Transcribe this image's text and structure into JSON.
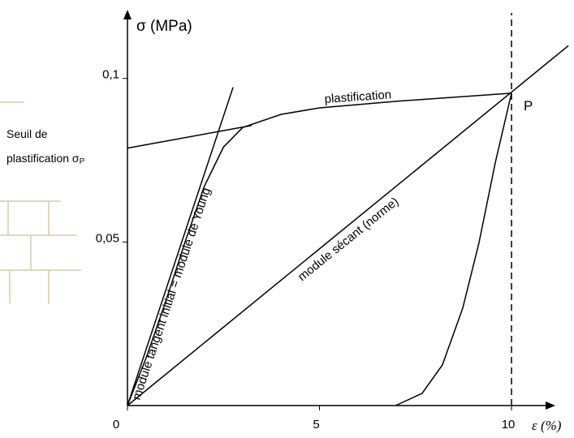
{
  "chart_data": {
    "type": "line",
    "y_label": "σ (MPa)",
    "x_label": "ε (%)",
    "xlim": [
      0,
      11.5
    ],
    "ylim": [
      0,
      0.12
    ],
    "xticks": [
      0,
      5,
      10
    ],
    "yticks": [
      {
        "value": 0.05,
        "label": "0,05"
      },
      {
        "value": 0.1,
        "label": "0,1"
      }
    ],
    "series": [
      {
        "color": "#000000",
        "x": [
          0,
          0.5,
          1,
          1.5,
          2,
          2.5,
          3,
          4,
          5,
          7,
          10
        ],
        "values": [
          0,
          0.015,
          0.032,
          0.05,
          0.067,
          0.079,
          0.085,
          0.089,
          0.091,
          0.093,
          0.0955
        ]
      },
      {
        "color": "#000000",
        "x": [
          10,
          9.58,
          9.15,
          8.73,
          8.2,
          7.67,
          6.98
        ],
        "values": [
          0.0955,
          0.0744,
          0.0496,
          0.0298,
          0.0124,
          0.0037,
          0
        ]
      },
      {
        "color": "#000000",
        "x": [
          0,
          2.75
        ],
        "values": [
          0,
          0.0973
        ]
      },
      {
        "color": "#000000",
        "x": [
          0,
          11.48
        ],
        "values": [
          0,
          0.11
        ]
      },
      {
        "color": "#000000",
        "x": [
          0,
          3.23
        ],
        "values": [
          0.0787,
          0.0856
        ]
      },
      {
        "color": "#000000",
        "dash": true,
        "x": [
          10,
          10
        ],
        "values": [
          0,
          0.12
        ]
      }
    ],
    "annotations": {
      "plastification": "plastification",
      "point": "P",
      "tangent": "module tangent initial = module de Young",
      "secant": "module sécant (norme)",
      "threshold": [
        "Seuil de",
        "plastification σ",
        "P"
      ]
    }
  }
}
